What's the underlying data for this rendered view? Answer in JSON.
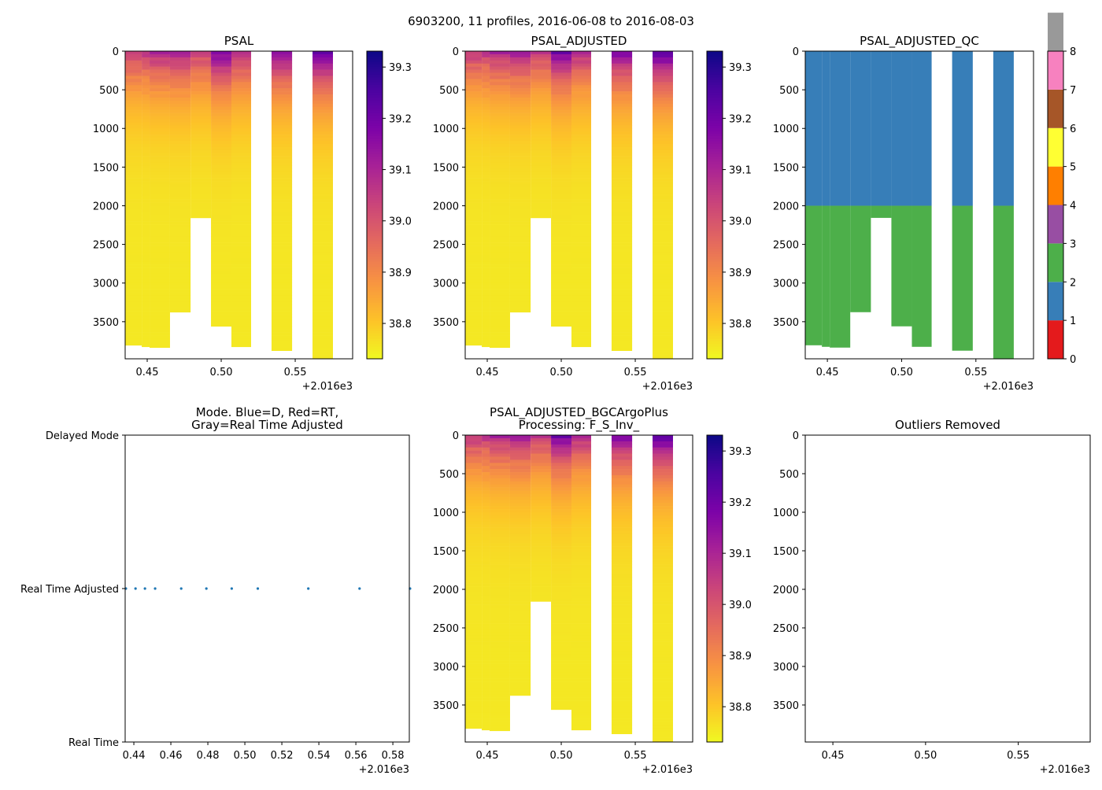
{
  "suptitle": "6903200, 11 profiles, 2016-06-08 to 2016-08-03",
  "colors": {
    "plasma": [
      "#0d0887",
      "#4b03a1",
      "#7d03a8",
      "#a82296",
      "#cb4679",
      "#e56b5d",
      "#f89441",
      "#fdc328",
      "#f0f921"
    ],
    "qc": [
      "#e41a1c",
      "#377eb8",
      "#4daf4a",
      "#984ea3",
      "#ff7f00",
      "#ffff33",
      "#a65628",
      "#f781bf",
      "#999999"
    ],
    "mode_dot": "#1f77b4"
  },
  "chart_data": [
    {
      "id": "psal",
      "type": "heatmap",
      "title": "PSAL",
      "xlim": [
        0.4351,
        0.5888
      ],
      "ylim": [
        3980,
        0
      ],
      "xticks": [
        0.45,
        0.5,
        0.55
      ],
      "xtick_labels": [
        "0.45",
        "0.50",
        "0.55"
      ],
      "x_offset_label": "+2.016e3",
      "yticks": [
        0,
        500,
        1000,
        1500,
        2000,
        2500,
        3000,
        3500
      ],
      "ytick_labels": [
        "0",
        "500",
        "1000",
        "1500",
        "2000",
        "2500",
        "3000",
        "3500"
      ],
      "colorbar": {
        "range": [
          38.731,
          39.331
        ],
        "ticks": [
          38.8,
          38.9,
          39.0,
          39.1,
          39.2,
          39.3
        ],
        "tick_labels": [
          "38.8",
          "38.9",
          "39.0",
          "39.1",
          "39.2",
          "39.3"
        ],
        "cmap": "plasma_r"
      }
    },
    {
      "id": "psal_adj",
      "type": "heatmap",
      "title": "PSAL_ADJUSTED",
      "xlim": [
        0.4351,
        0.5888
      ],
      "ylim": [
        3980,
        0
      ],
      "xticks": [
        0.45,
        0.5,
        0.55
      ],
      "xtick_labels": [
        "0.45",
        "0.50",
        "0.55"
      ],
      "x_offset_label": "+2.016e3",
      "yticks": [
        0,
        500,
        1000,
        1500,
        2000,
        2500,
        3000,
        3500
      ],
      "ytick_labels": [
        "0",
        "500",
        "1000",
        "1500",
        "2000",
        "2500",
        "3000",
        "3500"
      ],
      "colorbar": {
        "range": [
          38.731,
          39.331
        ],
        "ticks": [
          38.8,
          38.9,
          39.0,
          39.1,
          39.2,
          39.3
        ],
        "tick_labels": [
          "38.8",
          "38.9",
          "39.0",
          "39.1",
          "39.2",
          "39.3"
        ],
        "cmap": "plasma_r"
      }
    },
    {
      "id": "psal_qc",
      "type": "heatmap",
      "title": "PSAL_ADJUSTED_QC",
      "xlim": [
        0.4351,
        0.5888
      ],
      "ylim": [
        3980,
        0
      ],
      "xticks": [
        0.45,
        0.5,
        0.55
      ],
      "xtick_labels": [
        "0.45",
        "0.50",
        "0.55"
      ],
      "x_offset_label": "+2.016e3",
      "yticks": [
        0,
        500,
        1000,
        1500,
        2000,
        2500,
        3000,
        3500
      ],
      "ytick_labels": [
        "0",
        "500",
        "1000",
        "1500",
        "2000",
        "2500",
        "3000",
        "3500"
      ],
      "qc_boundary_pressure": 2000,
      "qc_upper": 1,
      "qc_lower": 2,
      "colorbar": {
        "range": [
          0,
          8
        ],
        "ticks": [
          0,
          1,
          2,
          3,
          4,
          5,
          6,
          7,
          8
        ],
        "tick_labels": [
          "0",
          "1",
          "2",
          "3",
          "4",
          "5",
          "6",
          "7",
          "8"
        ],
        "cmap": "qc"
      }
    },
    {
      "id": "mode",
      "type": "scatter",
      "title": "Mode. Blue=D, Red=RT,\nGray=Real Time Adjusted",
      "title_lines": [
        "Mode. Blue=D, Red=RT,",
        "Gray=Real Time Adjusted"
      ],
      "xlim": [
        0.4353,
        0.5889
      ],
      "ylim": [
        0,
        2
      ],
      "xticks": [
        0.44,
        0.46,
        0.48,
        0.5,
        0.52,
        0.54,
        0.56,
        0.58
      ],
      "xtick_labels": [
        "0.44",
        "0.46",
        "0.48",
        "0.50",
        "0.52",
        "0.54",
        "0.56",
        "0.58"
      ],
      "x_offset_label": "+2.016e3",
      "yticks": [
        0,
        1,
        2
      ],
      "ytick_labels": [
        "Real Time",
        "Real Time Adjusted",
        "Delayed Mode"
      ],
      "x": [
        0.4357,
        0.4409,
        0.446,
        0.4515,
        0.4656,
        0.4792,
        0.4929,
        0.507,
        0.5343,
        0.562,
        0.5893
      ],
      "y": [
        1,
        1,
        1,
        1,
        1,
        1,
        1,
        1,
        1,
        1,
        1
      ]
    },
    {
      "id": "psal_bgc",
      "type": "heatmap",
      "title": "PSAL_ADJUSTED_BGCArgoPlus\nProcessing: F_S_Inv_",
      "title_lines": [
        "PSAL_ADJUSTED_BGCArgoPlus",
        "Processing: F_S_Inv_"
      ],
      "xlim": [
        0.4351,
        0.5888
      ],
      "ylim": [
        3980,
        0
      ],
      "xticks": [
        0.45,
        0.5,
        0.55
      ],
      "xtick_labels": [
        "0.45",
        "0.50",
        "0.55"
      ],
      "x_offset_label": "+2.016e3",
      "yticks": [
        0,
        500,
        1000,
        1500,
        2000,
        2500,
        3000,
        3500
      ],
      "ytick_labels": [
        "0",
        "500",
        "1000",
        "1500",
        "2000",
        "2500",
        "3000",
        "3500"
      ],
      "colorbar": {
        "range": [
          38.731,
          39.331
        ],
        "ticks": [
          38.8,
          38.9,
          39.0,
          39.1,
          39.2,
          39.3
        ],
        "tick_labels": [
          "38.8",
          "38.9",
          "39.0",
          "39.1",
          "39.2",
          "39.3"
        ],
        "cmap": "plasma_r"
      }
    },
    {
      "id": "outliers",
      "type": "heatmap",
      "title": "Outliers Removed",
      "xlim": [
        0.4351,
        0.5888
      ],
      "ylim": [
        3980,
        0
      ],
      "xticks": [
        0.45,
        0.5,
        0.55
      ],
      "xtick_labels": [
        "0.45",
        "0.50",
        "0.55"
      ],
      "x_offset_label": "+2.016e3",
      "yticks": [
        0,
        500,
        1000,
        1500,
        2000,
        2500,
        3000,
        3500
      ],
      "ytick_labels": [
        "0",
        "500",
        "1000",
        "1500",
        "2000",
        "2500",
        "3000",
        "3500"
      ]
    }
  ],
  "profiles": {
    "x_edges": [
      0.4351,
      0.4463,
      0.4516,
      0.4654,
      0.4793,
      0.4931,
      0.5069,
      0.5202,
      0.534,
      0.5479,
      0.5617,
      0.5755,
      0.5888
    ],
    "max_pressure": [
      3805,
      3825,
      3835,
      3377,
      2157,
      3560,
      3825,
      null,
      3875,
      null,
      3980,
      null
    ],
    "surface_salinity": [
      39.06,
      39.07,
      39.1,
      39.12,
      39.06,
      39.2,
      39.1,
      null,
      39.18,
      null,
      39.26,
      null
    ]
  }
}
